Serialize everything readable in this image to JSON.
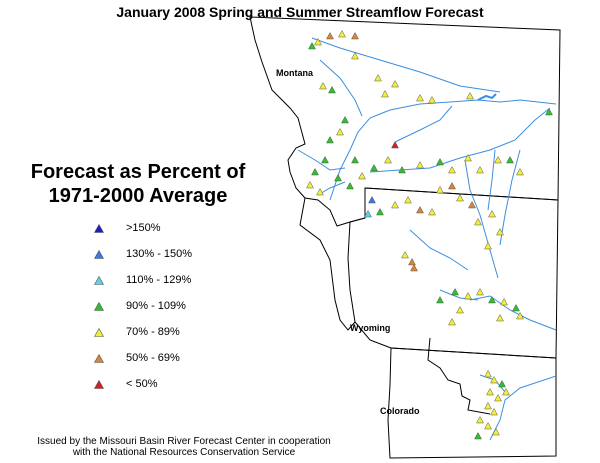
{
  "title": "January 2008 Spring and Summer Streamflow Forecast",
  "legend": {
    "title_line1": "Forecast as Percent of",
    "title_line2": "1971-2000 Average",
    "items": [
      {
        "label": ">150%",
        "color": "#1c1ccc"
      },
      {
        "label": "130% - 150%",
        "color": "#3a78e6"
      },
      {
        "label": "110% - 129%",
        "color": "#5fd3e6"
      },
      {
        "label": "90% - 109%",
        "color": "#2fbf2f"
      },
      {
        "label": "70% - 89%",
        "color": "#f2ef3c"
      },
      {
        "label": "50% - 69%",
        "color": "#d9843a"
      },
      {
        "label": "< 50%",
        "color": "#d42020"
      }
    ]
  },
  "states": {
    "montana": "Montana",
    "wyoming": "Wyoming",
    "colorado": "Colorado"
  },
  "footer": {
    "line1": "Issued by the Missouri Basin River Forecast Center in cooperation",
    "line2": "with the National Resources Conservation Service"
  },
  "colors": {
    "border": "#000000",
    "river": "#3b8fe0",
    "background": "#ffffff"
  }
}
